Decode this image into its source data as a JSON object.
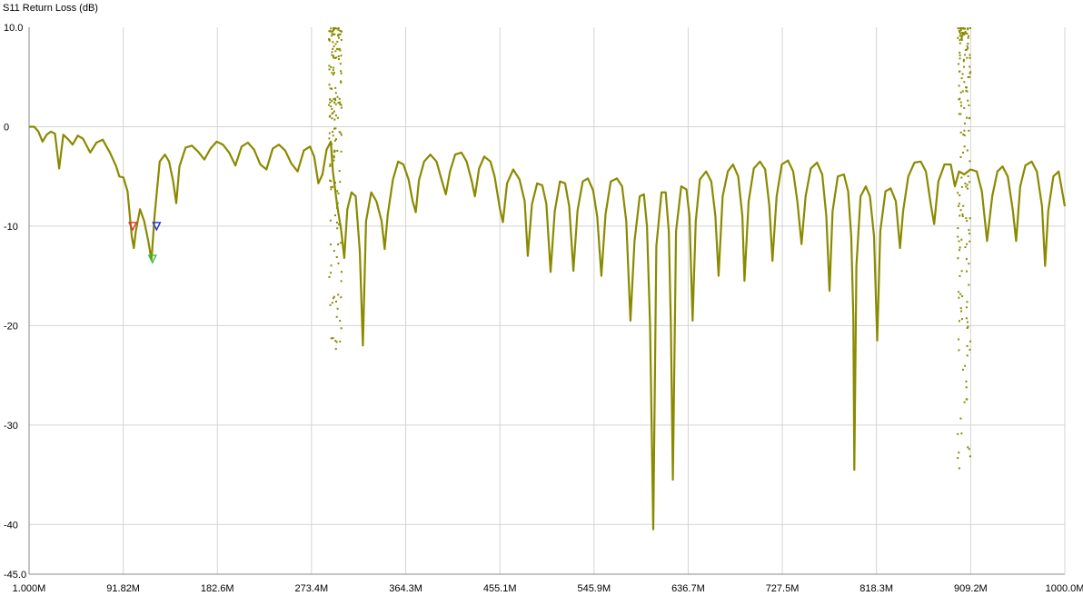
{
  "chart_data": {
    "type": "line",
    "title": "S11 Return Loss (dB)",
    "xlabel": "",
    "ylabel": "",
    "xlim": [
      1.0,
      1000.0
    ],
    "ylim": [
      -45.0,
      10.0
    ],
    "grid": true,
    "x_tick_labels": [
      "1.000M",
      "91.82M",
      "182.6M",
      "273.4M",
      "364.3M",
      "455.1M",
      "545.9M",
      "636.7M",
      "727.5M",
      "818.3M",
      "909.2M",
      "1000.0M"
    ],
    "x_tick_values": [
      1.0,
      91.82,
      182.6,
      273.4,
      364.3,
      455.1,
      545.9,
      636.7,
      727.5,
      818.3,
      909.2,
      1000.0
    ],
    "y_tick_labels": [
      "10.0",
      "0",
      "-10",
      "-20",
      "-30",
      "-40",
      "-45.0"
    ],
    "y_tick_values": [
      10,
      0,
      -10,
      -20,
      -30,
      -40,
      -45
    ],
    "colors": {
      "trace": "#8a8a00",
      "grid": "#d4d4d4",
      "marker1": "#e03020",
      "marker2": "#2030c0",
      "marker3": "#30c040"
    },
    "series": [
      {
        "values": [
          [
            1,
            0
          ],
          [
            6,
            0
          ],
          [
            10,
            -0.5
          ],
          [
            14,
            -1.5
          ],
          [
            18,
            -0.8
          ],
          [
            22,
            -0.5
          ],
          [
            26,
            -0.7
          ],
          [
            30,
            -4.2
          ],
          [
            34,
            -0.8
          ],
          [
            39,
            -1.3
          ],
          [
            43,
            -1.8
          ],
          [
            48,
            -0.9
          ],
          [
            53,
            -1.2
          ],
          [
            60,
            -2.6
          ],
          [
            66,
            -1.6
          ],
          [
            72,
            -1.3
          ],
          [
            79,
            -2.6
          ],
          [
            85,
            -4.0
          ],
          [
            88,
            -5.0
          ],
          [
            92,
            -5.1
          ],
          [
            96,
            -6.5
          ],
          [
            100,
            -11.0
          ],
          [
            102,
            -12.2
          ],
          [
            104,
            -10.5
          ],
          [
            108,
            -8.3
          ],
          [
            112,
            -9.5
          ],
          [
            116,
            -11.5
          ],
          [
            119,
            -13.4
          ],
          [
            122,
            -9.0
          ],
          [
            127,
            -3.5
          ],
          [
            132,
            -2.8
          ],
          [
            136,
            -3.5
          ],
          [
            140,
            -5.5
          ],
          [
            143,
            -7.7
          ],
          [
            146,
            -4.0
          ],
          [
            152,
            -2.1
          ],
          [
            158,
            -1.9
          ],
          [
            164,
            -2.5
          ],
          [
            170,
            -3.3
          ],
          [
            176,
            -2.2
          ],
          [
            182,
            -1.5
          ],
          [
            188,
            -1.8
          ],
          [
            194,
            -2.6
          ],
          [
            200,
            -3.9
          ],
          [
            206,
            -2.0
          ],
          [
            212,
            -1.6
          ],
          [
            218,
            -2.3
          ],
          [
            224,
            -3.8
          ],
          [
            230,
            -4.3
          ],
          [
            236,
            -2.2
          ],
          [
            242,
            -1.8
          ],
          [
            248,
            -2.4
          ],
          [
            254,
            -3.7
          ],
          [
            260,
            -4.5
          ],
          [
            266,
            -2.4
          ],
          [
            272,
            -2.0
          ],
          [
            276,
            -3.0
          ],
          [
            280,
            -5.7
          ],
          [
            284,
            -4.8
          ],
          [
            288,
            -2.3
          ],
          [
            292,
            -1.5
          ],
          [
            294,
            -4.5
          ],
          [
            298,
            -7.8
          ],
          [
            302,
            -10.4
          ],
          [
            305,
            -13.2
          ],
          [
            308,
            -8.3
          ],
          [
            312,
            -6.6
          ],
          [
            316,
            -7.0
          ],
          [
            320,
            -12.5
          ],
          [
            323,
            -22.0
          ],
          [
            326,
            -9.5
          ],
          [
            331,
            -6.6
          ],
          [
            336,
            -7.5
          ],
          [
            341,
            -9.5
          ],
          [
            344,
            -12.3
          ],
          [
            347,
            -8.8
          ],
          [
            352,
            -5.3
          ],
          [
            357,
            -3.5
          ],
          [
            362,
            -3.8
          ],
          [
            367,
            -5.3
          ],
          [
            371,
            -7.5
          ],
          [
            374,
            -8.6
          ],
          [
            377,
            -5.4
          ],
          [
            382,
            -3.5
          ],
          [
            388,
            -2.8
          ],
          [
            394,
            -3.5
          ],
          [
            398,
            -5.0
          ],
          [
            403,
            -6.8
          ],
          [
            407,
            -4.5
          ],
          [
            412,
            -2.8
          ],
          [
            418,
            -2.6
          ],
          [
            423,
            -3.5
          ],
          [
            428,
            -5.5
          ],
          [
            431,
            -7.0
          ],
          [
            435,
            -4.2
          ],
          [
            440,
            -3.0
          ],
          [
            446,
            -3.5
          ],
          [
            450,
            -5.0
          ],
          [
            455,
            -8.2
          ],
          [
            458,
            -9.6
          ],
          [
            462,
            -5.7
          ],
          [
            468,
            -4.3
          ],
          [
            474,
            -5.3
          ],
          [
            479,
            -7.5
          ],
          [
            482,
            -13.0
          ],
          [
            486,
            -7.8
          ],
          [
            491,
            -5.7
          ],
          [
            496,
            -5.9
          ],
          [
            500,
            -7.8
          ],
          [
            504,
            -14.6
          ],
          [
            508,
            -8.5
          ],
          [
            513,
            -5.5
          ],
          [
            518,
            -5.7
          ],
          [
            522,
            -8.0
          ],
          [
            526,
            -14.5
          ],
          [
            530,
            -8.4
          ],
          [
            535,
            -5.5
          ],
          [
            540,
            -5.2
          ],
          [
            545,
            -6.4
          ],
          [
            549,
            -9.0
          ],
          [
            553,
            -15.0
          ],
          [
            557,
            -8.8
          ],
          [
            562,
            -5.5
          ],
          [
            568,
            -5.2
          ],
          [
            573,
            -6.0
          ],
          [
            577,
            -9.5
          ],
          [
            581,
            -19.5
          ],
          [
            585,
            -11.5
          ],
          [
            590,
            -7.0
          ],
          [
            594,
            -6.8
          ],
          [
            597,
            -10.0
          ],
          [
            600,
            -20.0
          ],
          [
            603,
            -40.5
          ],
          [
            606,
            -12.0
          ],
          [
            611,
            -6.6
          ],
          [
            615,
            -6.6
          ],
          [
            618,
            -10.5
          ],
          [
            620,
            -20.0
          ],
          [
            622,
            -35.5
          ],
          [
            625,
            -10.5
          ],
          [
            630,
            -6.0
          ],
          [
            635,
            -6.3
          ],
          [
            638,
            -9.0
          ],
          [
            641,
            -19.5
          ],
          [
            644,
            -9.5
          ],
          [
            648,
            -5.3
          ],
          [
            654,
            -4.5
          ],
          [
            659,
            -5.5
          ],
          [
            663,
            -9.0
          ],
          [
            666,
            -15.0
          ],
          [
            670,
            -7.0
          ],
          [
            675,
            -4.5
          ],
          [
            680,
            -3.8
          ],
          [
            685,
            -5.0
          ],
          [
            689,
            -9.0
          ],
          [
            691,
            -15.5
          ],
          [
            695,
            -7.5
          ],
          [
            700,
            -4.2
          ],
          [
            706,
            -3.5
          ],
          [
            711,
            -4.3
          ],
          [
            715,
            -8.0
          ],
          [
            718,
            -13.5
          ],
          [
            722,
            -7.0
          ],
          [
            727,
            -3.8
          ],
          [
            733,
            -3.4
          ],
          [
            738,
            -4.5
          ],
          [
            742,
            -7.5
          ],
          [
            746,
            -11.8
          ],
          [
            750,
            -7.0
          ],
          [
            755,
            -4.2
          ],
          [
            761,
            -3.6
          ],
          [
            766,
            -4.8
          ],
          [
            770,
            -9.0
          ],
          [
            773,
            -16.5
          ],
          [
            776,
            -8.5
          ],
          [
            781,
            -5.0
          ],
          [
            787,
            -4.8
          ],
          [
            791,
            -6.5
          ],
          [
            794,
            -11.0
          ],
          [
            796,
            -19.0
          ],
          [
            797,
            -34.5
          ],
          [
            799,
            -14.0
          ],
          [
            803,
            -7.0
          ],
          [
            808,
            -6.0
          ],
          [
            812,
            -7.0
          ],
          [
            816,
            -11.0
          ],
          [
            819,
            -21.5
          ],
          [
            822,
            -10.5
          ],
          [
            827,
            -6.5
          ],
          [
            832,
            -6.2
          ],
          [
            837,
            -7.5
          ],
          [
            841,
            -12.2
          ],
          [
            844,
            -8.5
          ],
          [
            849,
            -5.0
          ],
          [
            855,
            -3.6
          ],
          [
            861,
            -3.5
          ],
          [
            866,
            -4.5
          ],
          [
            871,
            -8.0
          ],
          [
            874,
            -9.8
          ],
          [
            878,
            -5.5
          ],
          [
            884,
            -3.8
          ],
          [
            890,
            -3.8
          ],
          [
            894,
            -6.0
          ],
          [
            898,
            -4.5
          ],
          [
            903,
            -4.8
          ],
          [
            909,
            -4.3
          ],
          [
            915,
            -4.5
          ],
          [
            920,
            -6.5
          ],
          [
            925,
            -11.5
          ],
          [
            930,
            -7.0
          ],
          [
            935,
            -4.5
          ],
          [
            940,
            -4.0
          ],
          [
            945,
            -5.0
          ],
          [
            950,
            -8.5
          ],
          [
            953,
            -11.5
          ],
          [
            957,
            -6.0
          ],
          [
            962,
            -3.9
          ],
          [
            968,
            -3.5
          ],
          [
            973,
            -4.5
          ],
          [
            978,
            -8.0
          ],
          [
            981,
            -14.0
          ],
          [
            984,
            -8.5
          ],
          [
            989,
            -5.0
          ],
          [
            994,
            -4.5
          ],
          [
            1000,
            -8.0
          ]
        ]
      }
    ],
    "noise_bands": [
      {
        "x_center": 295.5,
        "y_range": [
          -24.0,
          10.0
        ]
      },
      {
        "x_center": 902.0,
        "y_range": [
          -35.0,
          10.0
        ]
      }
    ],
    "markers": [
      {
        "id": 1,
        "x": 101.0,
        "y": -10.0,
        "color": "#e03020"
      },
      {
        "id": 2,
        "x": 124.0,
        "y": -10.0,
        "color": "#2030c0"
      },
      {
        "id": 3,
        "x": 120.0,
        "y": -13.3,
        "color": "#30c040"
      }
    ]
  }
}
